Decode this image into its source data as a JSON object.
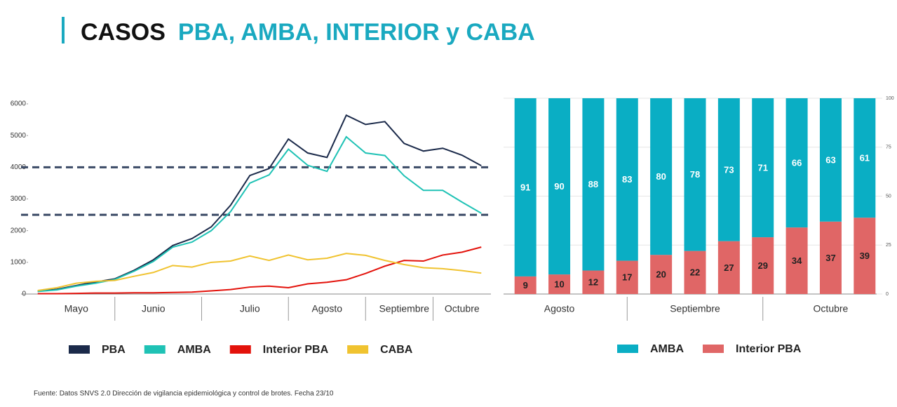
{
  "title_black": "CASOS",
  "title_color": "PBA, AMBA, INTERIOR y CABA",
  "footnote": "Fuente: Datos SNVS 2.0 Dirección de vigilancia epidemiológica y control de brotes. Fecha 23/10",
  "chart_data": [
    {
      "type": "line",
      "categories": [
        null,
        null,
        "Mayo",
        null,
        null,
        null,
        "Junio",
        null,
        null,
        null,
        null,
        "Julio",
        null,
        null,
        null,
        "Agosto",
        null,
        null,
        null,
        "Septiembre",
        null,
        null,
        "Octubre",
        null
      ],
      "series": [
        {
          "name": "PBA",
          "color": "#1b2a4a",
          "values": [
            90,
            150,
            270,
            380,
            480,
            750,
            1080,
            1530,
            1750,
            2120,
            2800,
            3740,
            3960,
            4890,
            4450,
            4310,
            5640,
            5350,
            5440,
            4750,
            4510,
            4600,
            4380,
            4050
          ]
        },
        {
          "name": "AMBA",
          "color": "#1fc2b5",
          "values": [
            80,
            130,
            250,
            340,
            460,
            720,
            1030,
            1480,
            1640,
            2000,
            2600,
            3500,
            3760,
            4570,
            4060,
            3870,
            4960,
            4450,
            4370,
            3730,
            3270,
            3270,
            2900,
            2550
          ]
        },
        {
          "name": "Interior PBA",
          "color": "#e3120b",
          "values": [
            10,
            10,
            20,
            30,
            30,
            40,
            40,
            50,
            60,
            100,
            140,
            220,
            250,
            200,
            320,
            370,
            450,
            650,
            880,
            1060,
            1040,
            1230,
            1320,
            1480
          ]
        },
        {
          "name": "CABA",
          "color": "#f0c330",
          "values": [
            110,
            200,
            340,
            400,
            430,
            560,
            680,
            900,
            850,
            1000,
            1040,
            1200,
            1060,
            1230,
            1080,
            1130,
            1280,
            1220,
            1060,
            930,
            830,
            800,
            740,
            660
          ]
        }
      ],
      "ylim": [
        0,
        6000
      ],
      "yticks": [
        0,
        1000,
        2000,
        3000,
        4000,
        5000,
        6000
      ],
      "reference_lines": [
        4000,
        2500
      ],
      "legend": "bottom"
    },
    {
      "type": "bar",
      "stacked": true,
      "categories": [
        null,
        "Agosto",
        null,
        null,
        null,
        "Septiembre",
        null,
        null,
        null,
        "Octubre",
        null
      ],
      "series": [
        {
          "name": "Interior PBA",
          "color": "#e06666",
          "values": [
            9,
            10,
            12,
            17,
            20,
            22,
            27,
            29,
            34,
            37,
            39
          ]
        },
        {
          "name": "AMBA",
          "color": "#0aaec4",
          "values": [
            91,
            90,
            88,
            83,
            80,
            78,
            73,
            71,
            66,
            63,
            61
          ]
        }
      ],
      "ylim": [
        0,
        100
      ],
      "yticks": [
        0,
        25,
        50,
        75,
        100
      ],
      "legend": "bottom"
    }
  ]
}
